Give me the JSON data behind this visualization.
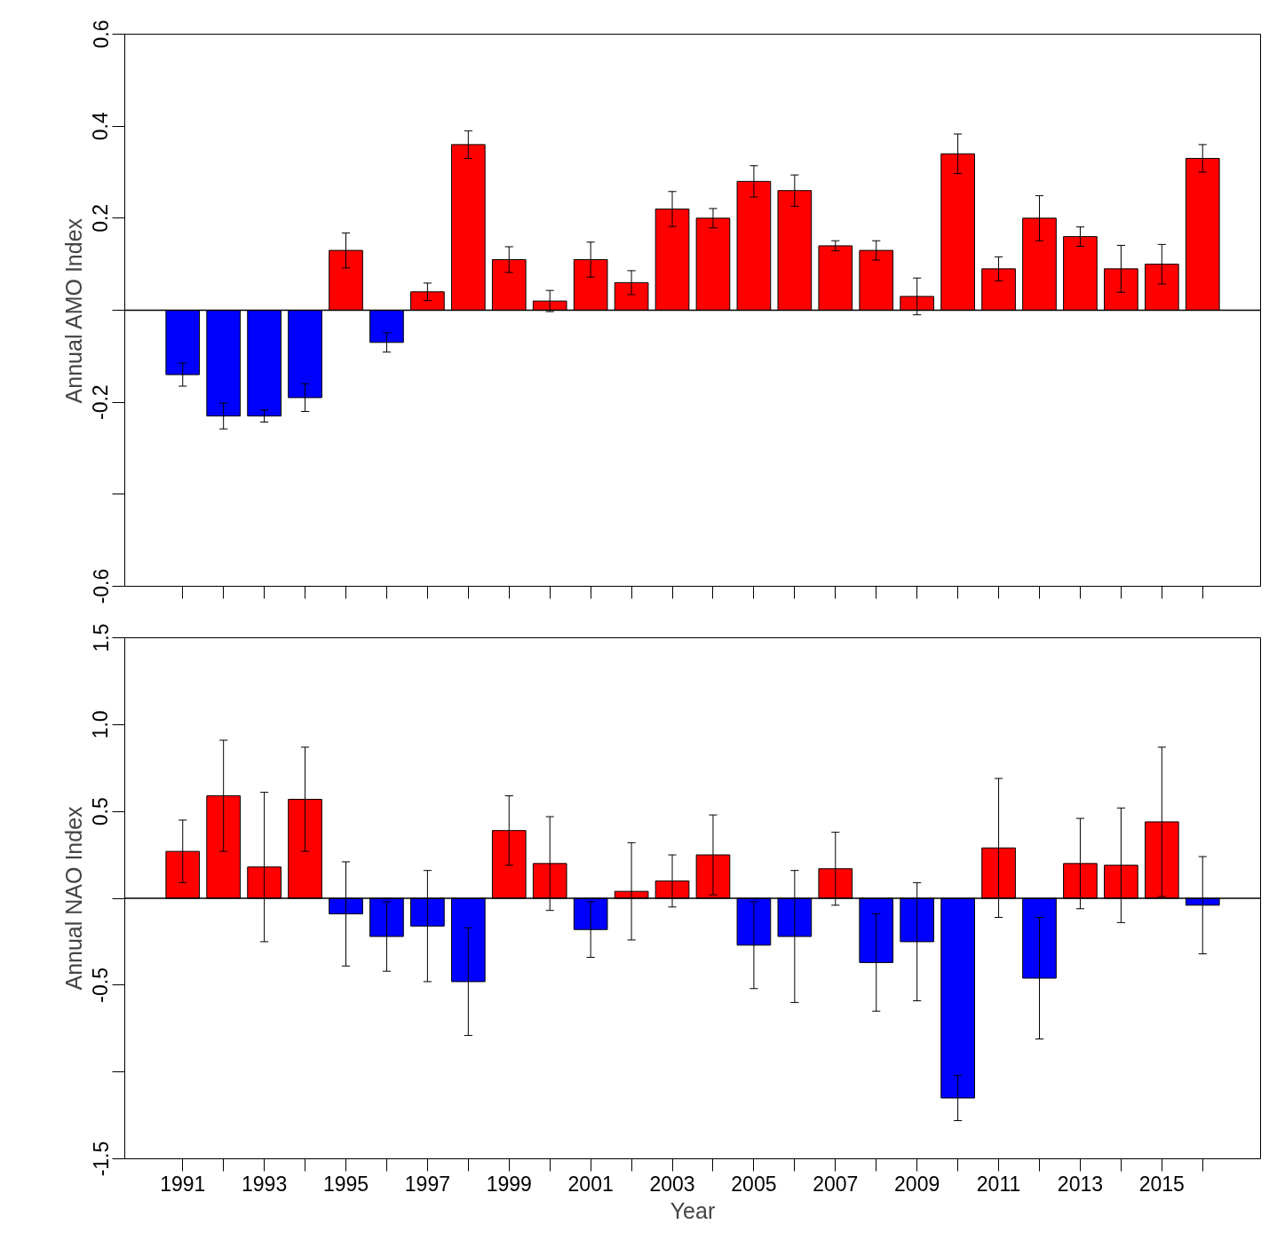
{
  "chart_data": [
    {
      "type": "bar",
      "ylabel": "Annual AMO Index",
      "tick_labels": "y",
      "x": [
        1991,
        1992,
        1993,
        1994,
        1995,
        1996,
        1997,
        1998,
        1999,
        2000,
        2001,
        2002,
        2003,
        2004,
        2005,
        2006,
        2007,
        2008,
        2009,
        2010,
        2011,
        2012,
        2013,
        2014,
        2015,
        2016
      ],
      "values": [
        -0.14,
        -0.23,
        -0.23,
        -0.19,
        0.13,
        -0.07,
        0.04,
        0.36,
        0.11,
        0.02,
        0.11,
        0.06,
        0.22,
        0.2,
        0.28,
        0.26,
        0.14,
        0.13,
        0.03,
        0.34,
        0.09,
        0.2,
        0.16,
        0.09,
        0.1,
        0.33
      ],
      "errors": [
        0.025,
        0.028,
        0.013,
        0.03,
        0.038,
        0.021,
        0.019,
        0.03,
        0.028,
        0.023,
        0.038,
        0.026,
        0.038,
        0.021,
        0.034,
        0.034,
        0.011,
        0.021,
        0.04,
        0.043,
        0.026,
        0.049,
        0.021,
        0.051,
        0.043,
        0.03
      ],
      "colors": [
        "#0000ff",
        "#0000ff",
        "#0000ff",
        "#0000ff",
        "#ff0000",
        "#0000ff",
        "#ff0000",
        "#ff0000",
        "#ff0000",
        "#ff0000",
        "#ff0000",
        "#ff0000",
        "#ff0000",
        "#ff0000",
        "#ff0000",
        "#ff0000",
        "#ff0000",
        "#ff0000",
        "#ff0000",
        "#ff0000",
        "#ff0000",
        "#ff0000",
        "#ff0000",
        "#ff0000",
        "#ff0000",
        "#ff0000"
      ],
      "xlim": [
        1989.58,
        2017.42
      ],
      "xticks": [
        {
          "value": 1991,
          "label": null
        },
        {
          "value": 1992,
          "label": null
        },
        {
          "value": 1993,
          "label": null
        },
        {
          "value": 1994,
          "label": null
        },
        {
          "value": 1995,
          "label": null
        },
        {
          "value": 1996,
          "label": null
        },
        {
          "value": 1997,
          "label": null
        },
        {
          "value": 1998,
          "label": null
        },
        {
          "value": 1999,
          "label": null
        },
        {
          "value": 2000,
          "label": null
        },
        {
          "value": 2001,
          "label": null
        },
        {
          "value": 2002,
          "label": null
        },
        {
          "value": 2003,
          "label": null
        },
        {
          "value": 2004,
          "label": null
        },
        {
          "value": 2005,
          "label": null
        },
        {
          "value": 2006,
          "label": null
        },
        {
          "value": 2007,
          "label": null
        },
        {
          "value": 2008,
          "label": null
        },
        {
          "value": 2009,
          "label": null
        },
        {
          "value": 2010,
          "label": null
        },
        {
          "value": 2011,
          "label": null
        },
        {
          "value": 2012,
          "label": null
        },
        {
          "value": 2013,
          "label": null
        },
        {
          "value": 2014,
          "label": null
        },
        {
          "value": 2015,
          "label": null
        },
        {
          "value": 2016,
          "label": null
        }
      ],
      "ylim": [
        -0.6,
        0.6
      ],
      "yticks": [
        {
          "value": -0.6,
          "label": "-0.6"
        },
        {
          "value": -0.4,
          "label": null
        },
        {
          "value": -0.2,
          "label": "-0.2"
        },
        {
          "value": 0,
          "label": null
        },
        {
          "value": 0.2,
          "label": "0.2"
        },
        {
          "value": 0.4,
          "label": "0.4"
        },
        {
          "value": 0.6,
          "label": "0.6"
        }
      ],
      "ref_lines": [
        {
          "axis": "y",
          "value": 0,
          "color": "#000000"
        }
      ]
    },
    {
      "type": "bar",
      "ylabel": "Annual NAO Index",
      "xlabel": "Year",
      "x": [
        1991,
        1992,
        1993,
        1994,
        1995,
        1996,
        1997,
        1998,
        1999,
        2000,
        2001,
        2002,
        2003,
        2004,
        2005,
        2006,
        2007,
        2008,
        2009,
        2010,
        2011,
        2012,
        2013,
        2014,
        2015,
        2016
      ],
      "values": [
        0.27,
        0.59,
        0.18,
        0.57,
        -0.09,
        -0.22,
        -0.16,
        -0.48,
        0.39,
        0.2,
        -0.18,
        0.04,
        0.1,
        0.25,
        -0.27,
        -0.22,
        0.17,
        -0.37,
        -0.25,
        -1.15,
        0.29,
        -0.46,
        0.2,
        0.19,
        0.44,
        -0.04
      ],
      "errors": [
        0.18,
        0.32,
        0.43,
        0.3,
        0.3,
        0.2,
        0.32,
        0.31,
        0.2,
        0.27,
        0.16,
        0.28,
        0.15,
        0.23,
        0.25,
        0.38,
        0.21,
        0.28,
        0.34,
        0.13,
        0.4,
        0.35,
        0.26,
        0.33,
        0.43,
        0.28
      ],
      "colors": [
        "#ff0000",
        "#ff0000",
        "#ff0000",
        "#ff0000",
        "#0000ff",
        "#0000ff",
        "#0000ff",
        "#0000ff",
        "#ff0000",
        "#ff0000",
        "#0000ff",
        "#ff0000",
        "#ff0000",
        "#ff0000",
        "#0000ff",
        "#0000ff",
        "#ff0000",
        "#0000ff",
        "#0000ff",
        "#0000ff",
        "#ff0000",
        "#0000ff",
        "#ff0000",
        "#ff0000",
        "#ff0000",
        "#0000ff"
      ],
      "xlim": [
        1989.58,
        2017.42
      ],
      "xticks": [
        1991,
        {
          "value": 1992,
          "label": null
        },
        1993,
        {
          "value": 1994,
          "label": null
        },
        1995,
        {
          "value": 1996,
          "label": null
        },
        1997,
        {
          "value": 1998,
          "label": null
        },
        1999,
        {
          "value": 2000,
          "label": null
        },
        2001,
        {
          "value": 2002,
          "label": null
        },
        2003,
        {
          "value": 2004,
          "label": null
        },
        2005,
        {
          "value": 2006,
          "label": null
        },
        2007,
        {
          "value": 2008,
          "label": null
        },
        2009,
        {
          "value": 2010,
          "label": null
        },
        2011,
        {
          "value": 2012,
          "label": null
        },
        2013,
        {
          "value": 2014,
          "label": null
        },
        2015,
        {
          "value": 2016,
          "label": null
        }
      ],
      "ylim": [
        -1.5,
        1.5
      ],
      "yticks": [
        {
          "value": -1.5,
          "label": "-1.5"
        },
        {
          "value": -1.0,
          "label": null
        },
        {
          "value": -0.5,
          "label": "-0.5"
        },
        {
          "value": 0,
          "label": null
        },
        {
          "value": 0.5,
          "label": "0.5"
        },
        {
          "value": 1.0,
          "label": "1.0"
        },
        {
          "value": 1.5,
          "label": "1.5"
        }
      ],
      "ref_lines": [
        {
          "axis": "y",
          "value": 0,
          "color": "#000000"
        }
      ]
    }
  ]
}
